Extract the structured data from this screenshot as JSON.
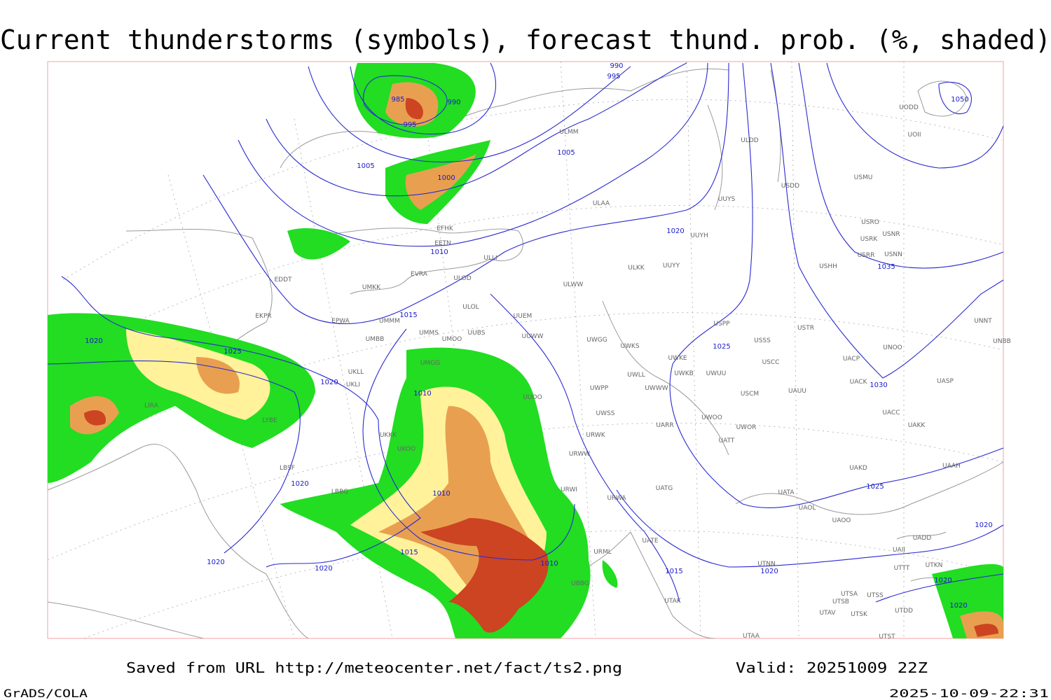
{
  "header": {
    "title": "Current thunderstorms (symbols), forecast thund. prob. (%, shaded)"
  },
  "map": {
    "isobar_labels": [
      990,
      995,
      985,
      990,
      995,
      1005,
      1005,
      1000,
      1010,
      1020,
      1035,
      1015,
      1020,
      1025,
      1025,
      1030,
      1020,
      1010,
      1010,
      1020,
      1025,
      1020,
      1015,
      1010,
      1015,
      1020,
      1020,
      1020,
      1020,
      1020,
      1050
    ],
    "stations": [
      "UODD",
      "UOII",
      "USMU",
      "USDD",
      "ULDD",
      "ULMM",
      "ULAA",
      "UUYS",
      "UUYH",
      "USRO",
      "USRK",
      "USNR",
      "USRR",
      "USNN",
      "USHH",
      "EFHK",
      "EETN",
      "ULLI",
      "ULKK",
      "UUYY",
      "EVRA",
      "ULOD",
      "EDDT",
      "UMKK",
      "ULWW",
      "ULOL",
      "UUEM",
      "EKPR",
      "EPWA",
      "UMMS",
      "USPP",
      "USTR",
      "UNNT",
      "UMMM",
      "UUBS",
      "UUWW",
      "UMBB",
      "UMOO",
      "UWGG",
      "USSS",
      "UNBB",
      "UWKS",
      "UNOO",
      "UWKE",
      "UASP",
      "UACP",
      "USCC",
      "UMGG",
      "UWKB",
      "UWUU",
      "UWLL",
      "UKLL",
      "UKLI",
      "UWPP",
      "UWWW",
      "UACK",
      "USCM",
      "UAUU",
      "UUOO",
      "UWSS",
      "UACC",
      "UARR",
      "UWOO",
      "UWOR",
      "UAKK",
      "UKKK",
      "URWK",
      "UATT",
      "UKOO",
      "URWW",
      "LBSF",
      "UAKD",
      "UAAH",
      "URWI",
      "UATG",
      "UATA",
      "LBBG",
      "URWA",
      "UAOL",
      "UAOO",
      "UATE",
      "URML",
      "UTNN",
      "UADD",
      "UAII",
      "UTTT",
      "UTKN",
      "UBBG",
      "UTAK",
      "UTSA",
      "UTSS",
      "UTSB",
      "UTDD",
      "UTAV",
      "UTSK",
      "UTAA",
      "UTST",
      "LYBE",
      "LIRA"
    ]
  },
  "footer": {
    "source": "Saved from URL http://meteocenter.net/fact/ts2.png",
    "valid": "Valid: 20251009 22Z",
    "software": "GrADS/COLA",
    "timestamp": "2025-10-09-22:31"
  }
}
